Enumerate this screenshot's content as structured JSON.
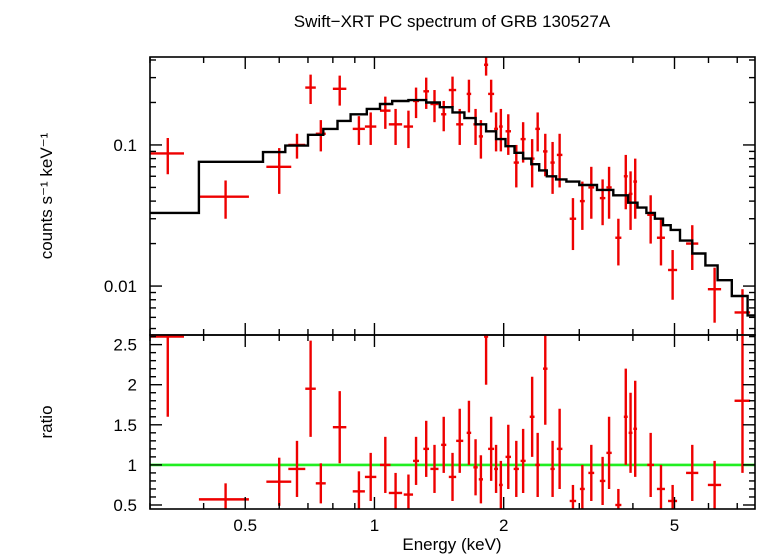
{
  "chart_data": {
    "type": "scatter",
    "title": "Swift−XRT PC spectrum of GRB 130527A",
    "xlabel": "Energy (keV)",
    "x_scale": "log",
    "xlim": [
      0.3,
      7.7
    ],
    "x_ticks": [
      0.5,
      1,
      2,
      5
    ],
    "x_tick_labels": [
      "0.5",
      "1",
      "2",
      "5"
    ],
    "panels": [
      {
        "name": "spectrum",
        "ylabel": "counts s⁻¹ keV⁻¹",
        "y_scale": "log",
        "ylim": [
          0.0045,
          0.42
        ],
        "y_ticks": [
          0.1,
          0.01
        ],
        "y_tick_labels": [
          "0.1",
          "0.01"
        ],
        "data": [
          [
            0.33,
            0.03,
            0.087,
            0.025
          ],
          [
            0.45,
            0.06,
            0.043,
            0.013
          ],
          [
            0.6,
            0.04,
            0.07,
            0.025
          ],
          [
            0.66,
            0.03,
            0.1,
            0.02
          ],
          [
            0.71,
            0.02,
            0.255,
            0.06
          ],
          [
            0.75,
            0.02,
            0.12,
            0.03
          ],
          [
            0.83,
            0.03,
            0.25,
            0.06
          ],
          [
            0.92,
            0.03,
            0.13,
            0.03
          ],
          [
            0.98,
            0.03,
            0.135,
            0.035
          ],
          [
            1.06,
            0.03,
            0.175,
            0.045
          ],
          [
            1.12,
            0.04,
            0.14,
            0.04
          ],
          [
            1.2,
            0.03,
            0.135,
            0.04
          ],
          [
            1.25,
            0.02,
            0.205,
            0.05
          ],
          [
            1.32,
            0.02,
            0.24,
            0.06
          ],
          [
            1.38,
            0.03,
            0.195,
            0.05
          ],
          [
            1.45,
            0.02,
            0.165,
            0.04
          ],
          [
            1.52,
            0.03,
            0.245,
            0.06
          ],
          [
            1.58,
            0.03,
            0.14,
            0.04
          ],
          [
            1.66,
            0.02,
            0.23,
            0.06
          ],
          [
            1.72,
            0.02,
            0.14,
            0.04
          ],
          [
            1.77,
            0.02,
            0.115,
            0.035
          ],
          [
            1.82,
            0.02,
            0.37,
            0.06
          ],
          [
            1.87,
            0.03,
            0.23,
            0.06
          ],
          [
            1.92,
            0.02,
            0.13,
            0.04
          ],
          [
            1.97,
            0.02,
            0.135,
            0.045
          ],
          [
            2.05,
            0.03,
            0.125,
            0.04
          ],
          [
            2.14,
            0.03,
            0.075,
            0.025
          ],
          [
            2.22,
            0.03,
            0.11,
            0.035
          ],
          [
            2.33,
            0.03,
            0.08,
            0.03
          ],
          [
            2.4,
            0.03,
            0.13,
            0.04
          ],
          [
            2.5,
            0.03,
            0.09,
            0.03
          ],
          [
            2.6,
            0.03,
            0.075,
            0.03
          ],
          [
            2.7,
            0.04,
            0.085,
            0.035
          ],
          [
            2.9,
            0.05,
            0.03,
            0.012
          ],
          [
            3.05,
            0.04,
            0.04,
            0.015
          ],
          [
            3.2,
            0.05,
            0.05,
            0.02
          ],
          [
            3.4,
            0.05,
            0.042,
            0.015
          ],
          [
            3.52,
            0.05,
            0.05,
            0.02
          ],
          [
            3.7,
            0.06,
            0.022,
            0.008
          ],
          [
            3.85,
            0.04,
            0.06,
            0.025
          ],
          [
            3.95,
            0.04,
            0.045,
            0.02
          ],
          [
            4.05,
            0.04,
            0.055,
            0.025
          ],
          [
            4.4,
            0.08,
            0.032,
            0.012
          ],
          [
            4.65,
            0.1,
            0.022,
            0.008
          ],
          [
            4.95,
            0.12,
            0.013,
            0.005
          ],
          [
            5.5,
            0.18,
            0.02,
            0.007
          ],
          [
            6.2,
            0.22,
            0.0095,
            0.004
          ],
          [
            7.2,
            0.3,
            0.0065,
            0.003
          ]
        ],
        "model": [
          [
            0.3,
            0.033
          ],
          [
            0.39,
            0.033
          ],
          [
            0.39,
            0.076
          ],
          [
            0.55,
            0.076
          ],
          [
            0.55,
            0.089
          ],
          [
            0.62,
            0.089
          ],
          [
            0.62,
            0.099
          ],
          [
            0.7,
            0.099
          ],
          [
            0.7,
            0.118
          ],
          [
            0.76,
            0.118
          ],
          [
            0.76,
            0.13
          ],
          [
            0.82,
            0.13
          ],
          [
            0.82,
            0.148
          ],
          [
            0.88,
            0.148
          ],
          [
            0.88,
            0.165
          ],
          [
            0.96,
            0.165
          ],
          [
            0.96,
            0.18
          ],
          [
            1.03,
            0.18
          ],
          [
            1.03,
            0.195
          ],
          [
            1.1,
            0.195
          ],
          [
            1.1,
            0.205
          ],
          [
            1.2,
            0.205
          ],
          [
            1.2,
            0.208
          ],
          [
            1.32,
            0.208
          ],
          [
            1.32,
            0.2
          ],
          [
            1.42,
            0.2
          ],
          [
            1.42,
            0.185
          ],
          [
            1.52,
            0.185
          ],
          [
            1.52,
            0.17
          ],
          [
            1.62,
            0.17
          ],
          [
            1.62,
            0.155
          ],
          [
            1.72,
            0.155
          ],
          [
            1.72,
            0.14
          ],
          [
            1.82,
            0.14
          ],
          [
            1.82,
            0.125
          ],
          [
            1.92,
            0.125
          ],
          [
            1.92,
            0.11
          ],
          [
            2.02,
            0.11
          ],
          [
            2.02,
            0.098
          ],
          [
            2.12,
            0.098
          ],
          [
            2.12,
            0.088
          ],
          [
            2.22,
            0.088
          ],
          [
            2.22,
            0.08
          ],
          [
            2.32,
            0.08
          ],
          [
            2.32,
            0.073
          ],
          [
            2.42,
            0.073
          ],
          [
            2.42,
            0.066
          ],
          [
            2.52,
            0.066
          ],
          [
            2.52,
            0.06
          ],
          [
            2.65,
            0.06
          ],
          [
            2.65,
            0.057
          ],
          [
            2.8,
            0.057
          ],
          [
            2.8,
            0.055
          ],
          [
            3.0,
            0.055
          ],
          [
            3.0,
            0.052
          ],
          [
            3.3,
            0.052
          ],
          [
            3.3,
            0.048
          ],
          [
            3.6,
            0.048
          ],
          [
            3.6,
            0.044
          ],
          [
            3.9,
            0.044
          ],
          [
            3.9,
            0.039
          ],
          [
            4.1,
            0.039
          ],
          [
            4.1,
            0.036
          ],
          [
            4.3,
            0.036
          ],
          [
            4.3,
            0.033
          ],
          [
            4.5,
            0.033
          ],
          [
            4.5,
            0.03
          ],
          [
            4.7,
            0.03
          ],
          [
            4.7,
            0.027
          ],
          [
            4.9,
            0.027
          ],
          [
            4.9,
            0.025
          ],
          [
            5.15,
            0.025
          ],
          [
            5.15,
            0.021
          ],
          [
            5.5,
            0.021
          ],
          [
            5.5,
            0.017
          ],
          [
            5.9,
            0.017
          ],
          [
            5.9,
            0.014
          ],
          [
            6.3,
            0.014
          ],
          [
            6.3,
            0.011
          ],
          [
            6.8,
            0.011
          ],
          [
            6.8,
            0.0085
          ],
          [
            7.4,
            0.0085
          ],
          [
            7.4,
            0.0062
          ],
          [
            7.7,
            0.0062
          ]
        ]
      },
      {
        "name": "ratio",
        "ylabel": "ratio",
        "y_scale": "linear",
        "ylim": [
          0.45,
          2.62
        ],
        "y_ticks": [
          0.5,
          1,
          1.5,
          2,
          2.5
        ],
        "y_tick_labels": [
          "0.5",
          "1",
          "1.5",
          "2",
          "2.5"
        ],
        "reference_line": 1,
        "data": [
          [
            0.33,
            0.03,
            2.6,
            1.0
          ],
          [
            0.45,
            0.06,
            0.57,
            0.2
          ],
          [
            0.6,
            0.04,
            0.79,
            0.3
          ],
          [
            0.66,
            0.03,
            0.95,
            0.35
          ],
          [
            0.71,
            0.02,
            1.95,
            0.6
          ],
          [
            0.75,
            0.02,
            0.77,
            0.25
          ],
          [
            0.83,
            0.03,
            1.47,
            0.45
          ],
          [
            0.92,
            0.03,
            0.67,
            0.25
          ],
          [
            0.98,
            0.03,
            0.85,
            0.3
          ],
          [
            1.06,
            0.03,
            1.0,
            0.35
          ],
          [
            1.12,
            0.04,
            0.65,
            0.25
          ],
          [
            1.2,
            0.03,
            0.63,
            0.25
          ],
          [
            1.25,
            0.02,
            1.05,
            0.3
          ],
          [
            1.32,
            0.02,
            1.2,
            0.35
          ],
          [
            1.38,
            0.03,
            0.95,
            0.3
          ],
          [
            1.45,
            0.02,
            1.25,
            0.35
          ],
          [
            1.52,
            0.03,
            0.85,
            0.3
          ],
          [
            1.58,
            0.03,
            1.3,
            0.4
          ],
          [
            1.66,
            0.02,
            1.4,
            0.4
          ],
          [
            1.72,
            0.02,
            0.97,
            0.35
          ],
          [
            1.77,
            0.02,
            0.82,
            0.3
          ],
          [
            1.82,
            0.02,
            2.6,
            0.6
          ],
          [
            1.87,
            0.03,
            1.2,
            0.4
          ],
          [
            1.92,
            0.02,
            0.95,
            0.3
          ],
          [
            1.97,
            0.02,
            0.75,
            0.3
          ],
          [
            2.05,
            0.03,
            1.1,
            0.4
          ],
          [
            2.14,
            0.03,
            0.95,
            0.35
          ],
          [
            2.22,
            0.03,
            1.05,
            0.4
          ],
          [
            2.33,
            0.03,
            1.6,
            0.5
          ],
          [
            2.4,
            0.03,
            1.0,
            0.4
          ],
          [
            2.5,
            0.03,
            2.2,
            0.7
          ],
          [
            2.6,
            0.03,
            0.95,
            0.35
          ],
          [
            2.7,
            0.04,
            1.2,
            0.5
          ],
          [
            2.9,
            0.05,
            0.55,
            0.2
          ],
          [
            3.05,
            0.04,
            0.7,
            0.3
          ],
          [
            3.2,
            0.05,
            0.9,
            0.35
          ],
          [
            3.4,
            0.05,
            0.8,
            0.3
          ],
          [
            3.52,
            0.05,
            1.15,
            0.45
          ],
          [
            3.7,
            0.06,
            0.5,
            0.2
          ],
          [
            3.85,
            0.04,
            1.6,
            0.6
          ],
          [
            3.95,
            0.04,
            1.4,
            0.5
          ],
          [
            4.05,
            0.04,
            1.45,
            0.6
          ],
          [
            4.4,
            0.08,
            1.0,
            0.4
          ],
          [
            4.65,
            0.1,
            0.7,
            0.3
          ],
          [
            4.95,
            0.12,
            0.55,
            0.2
          ],
          [
            5.5,
            0.18,
            0.9,
            0.35
          ],
          [
            6.2,
            0.22,
            0.75,
            0.3
          ],
          [
            7.2,
            0.3,
            1.8,
            0.9
          ]
        ]
      }
    ],
    "colors": {
      "data": "#ee0000",
      "model": "#000000",
      "ratio_line": "#22ee22"
    }
  }
}
